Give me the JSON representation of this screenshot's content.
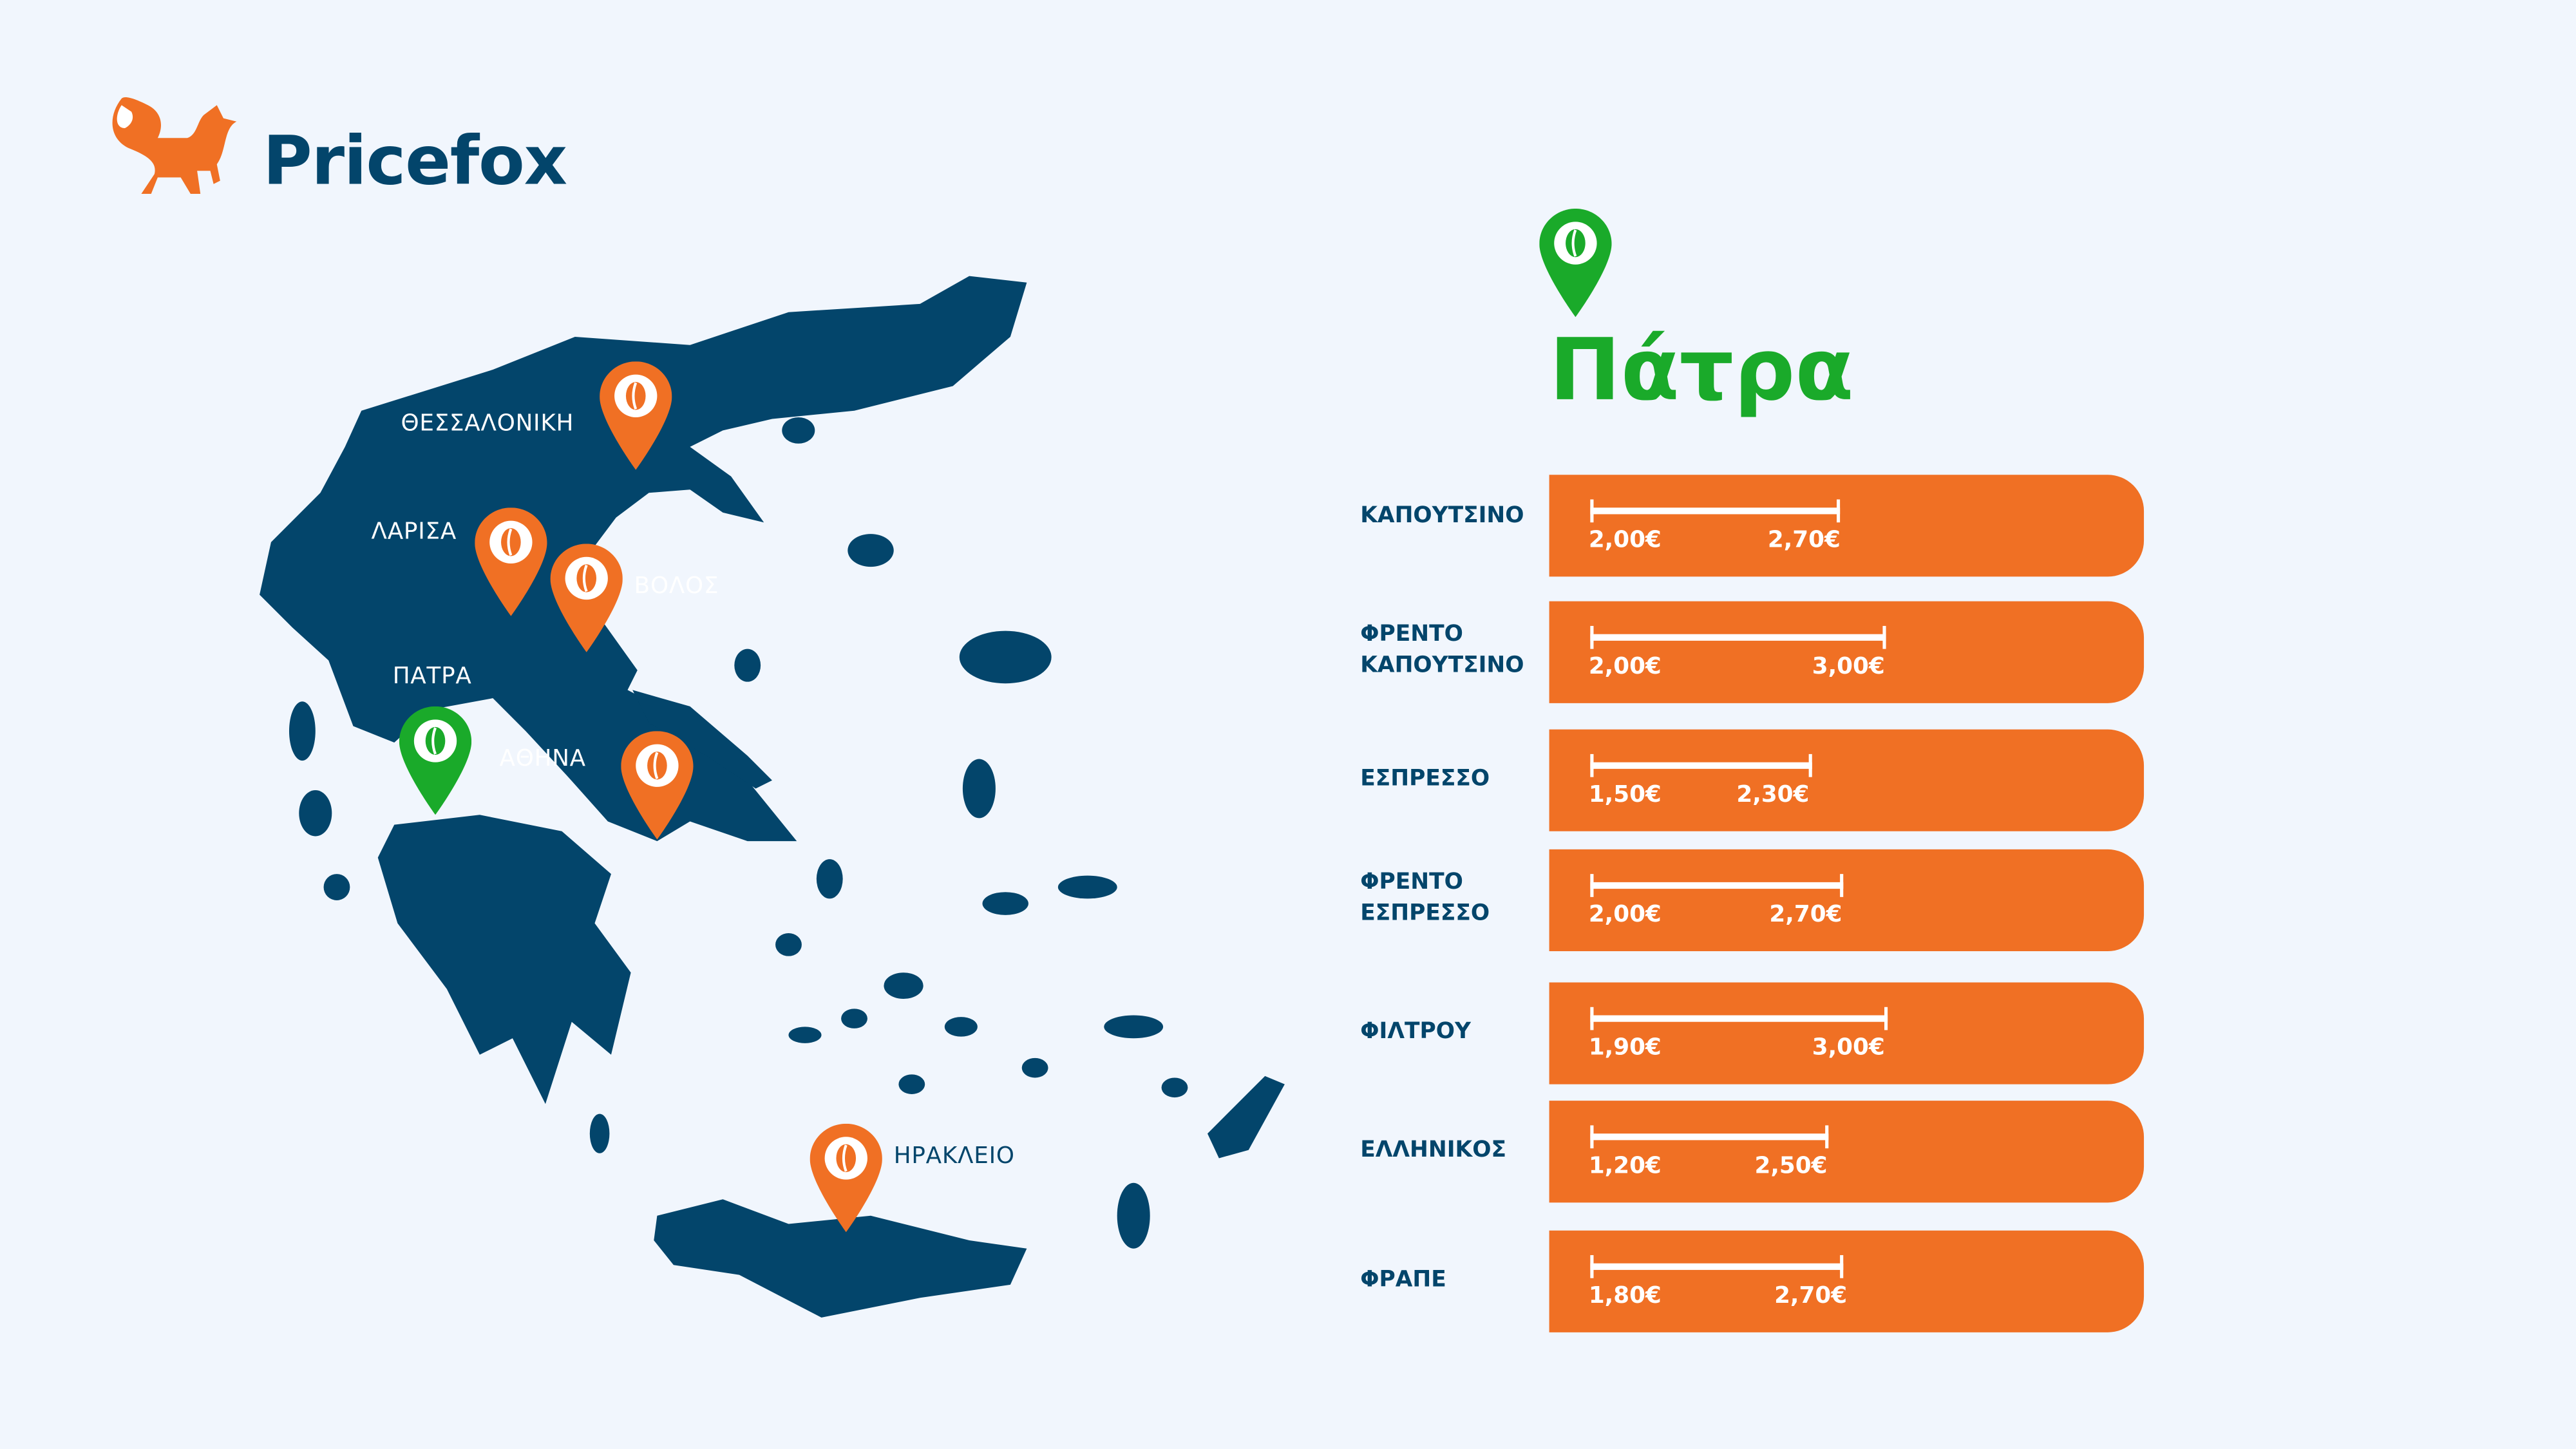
{
  "brand": {
    "name": "Pricefox",
    "color": "#03456b",
    "accent": "#f07024"
  },
  "map": {
    "land_color": "#03456b",
    "cities": [
      {
        "name": "ΘΕΣΣΑΛΟΝΙΚΗ",
        "pin": "orange"
      },
      {
        "name": "ΛΑΡΙΣΑ",
        "pin": "orange"
      },
      {
        "name": "ΒΟΛΟΣ",
        "pin": "orange"
      },
      {
        "name": "ΠΑΤΡΑ",
        "pin": "green",
        "selected": true
      },
      {
        "name": "ΑΘΗΝΑ",
        "pin": "orange"
      },
      {
        "name": "ΗΡΑΚΛΕΙΟ",
        "pin": "orange"
      }
    ],
    "pin_icon": "coffee-bean-icon"
  },
  "panel": {
    "title": "Πάτρα",
    "title_color": "#1aaa2a",
    "rows": [
      {
        "label": [
          "ΚΑΠΟΥΤΣΙΝΟ"
        ],
        "min": "2,00€",
        "max": "2,70€"
      },
      {
        "label": [
          "ΦΡΕΝΤΟ",
          "ΚΑΠΟΥΤΣΙΝΟ"
        ],
        "min": "2,00€",
        "max": "3,00€"
      },
      {
        "label": [
          "ΕΣΠΡΕΣΣΟ"
        ],
        "min": "1,50€",
        "max": "2,30€"
      },
      {
        "label": [
          "ΦΡΕΝΤΟ",
          "ΕΣΠΡΕΣΣΟ"
        ],
        "min": "2,00€",
        "max": "2,70€"
      },
      {
        "label": [
          "ΦΙΛΤΡΟΥ"
        ],
        "min": "1,90€",
        "max": "3,00€"
      },
      {
        "label": [
          "ΕΛΛΗΝΙΚΟΣ"
        ],
        "min": "1,20€",
        "max": "2,50€"
      },
      {
        "label": [
          "ΦΡΑΠΕ"
        ],
        "min": "1,80€",
        "max": "2,70€"
      }
    ]
  }
}
